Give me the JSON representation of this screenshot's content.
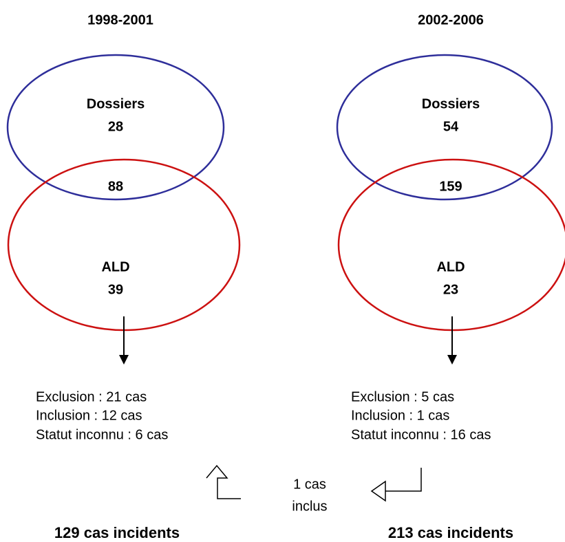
{
  "periods": [
    {
      "title": "1998-2001",
      "dossiers": {
        "label": "Dossiers",
        "count": "28"
      },
      "overlap": "88",
      "ald": {
        "label": "ALD",
        "count": "39"
      },
      "details": [
        "Exclusion : 21 cas",
        "Inclusion : 12 cas",
        "Statut inconnu : 6 cas"
      ],
      "total": "129 cas incidents"
    },
    {
      "title": "2002-2006",
      "dossiers": {
        "label": "Dossiers",
        "count": "54"
      },
      "overlap": "159",
      "ald": {
        "label": "ALD",
        "count": "23"
      },
      "details": [
        "Exclusion : 5 cas",
        "Inclusion : 1 cas",
        "Statut inconnu : 16 cas"
      ],
      "total": "213 cas incidents"
    }
  ],
  "transfer": [
    "1 cas",
    "inclus"
  ]
}
